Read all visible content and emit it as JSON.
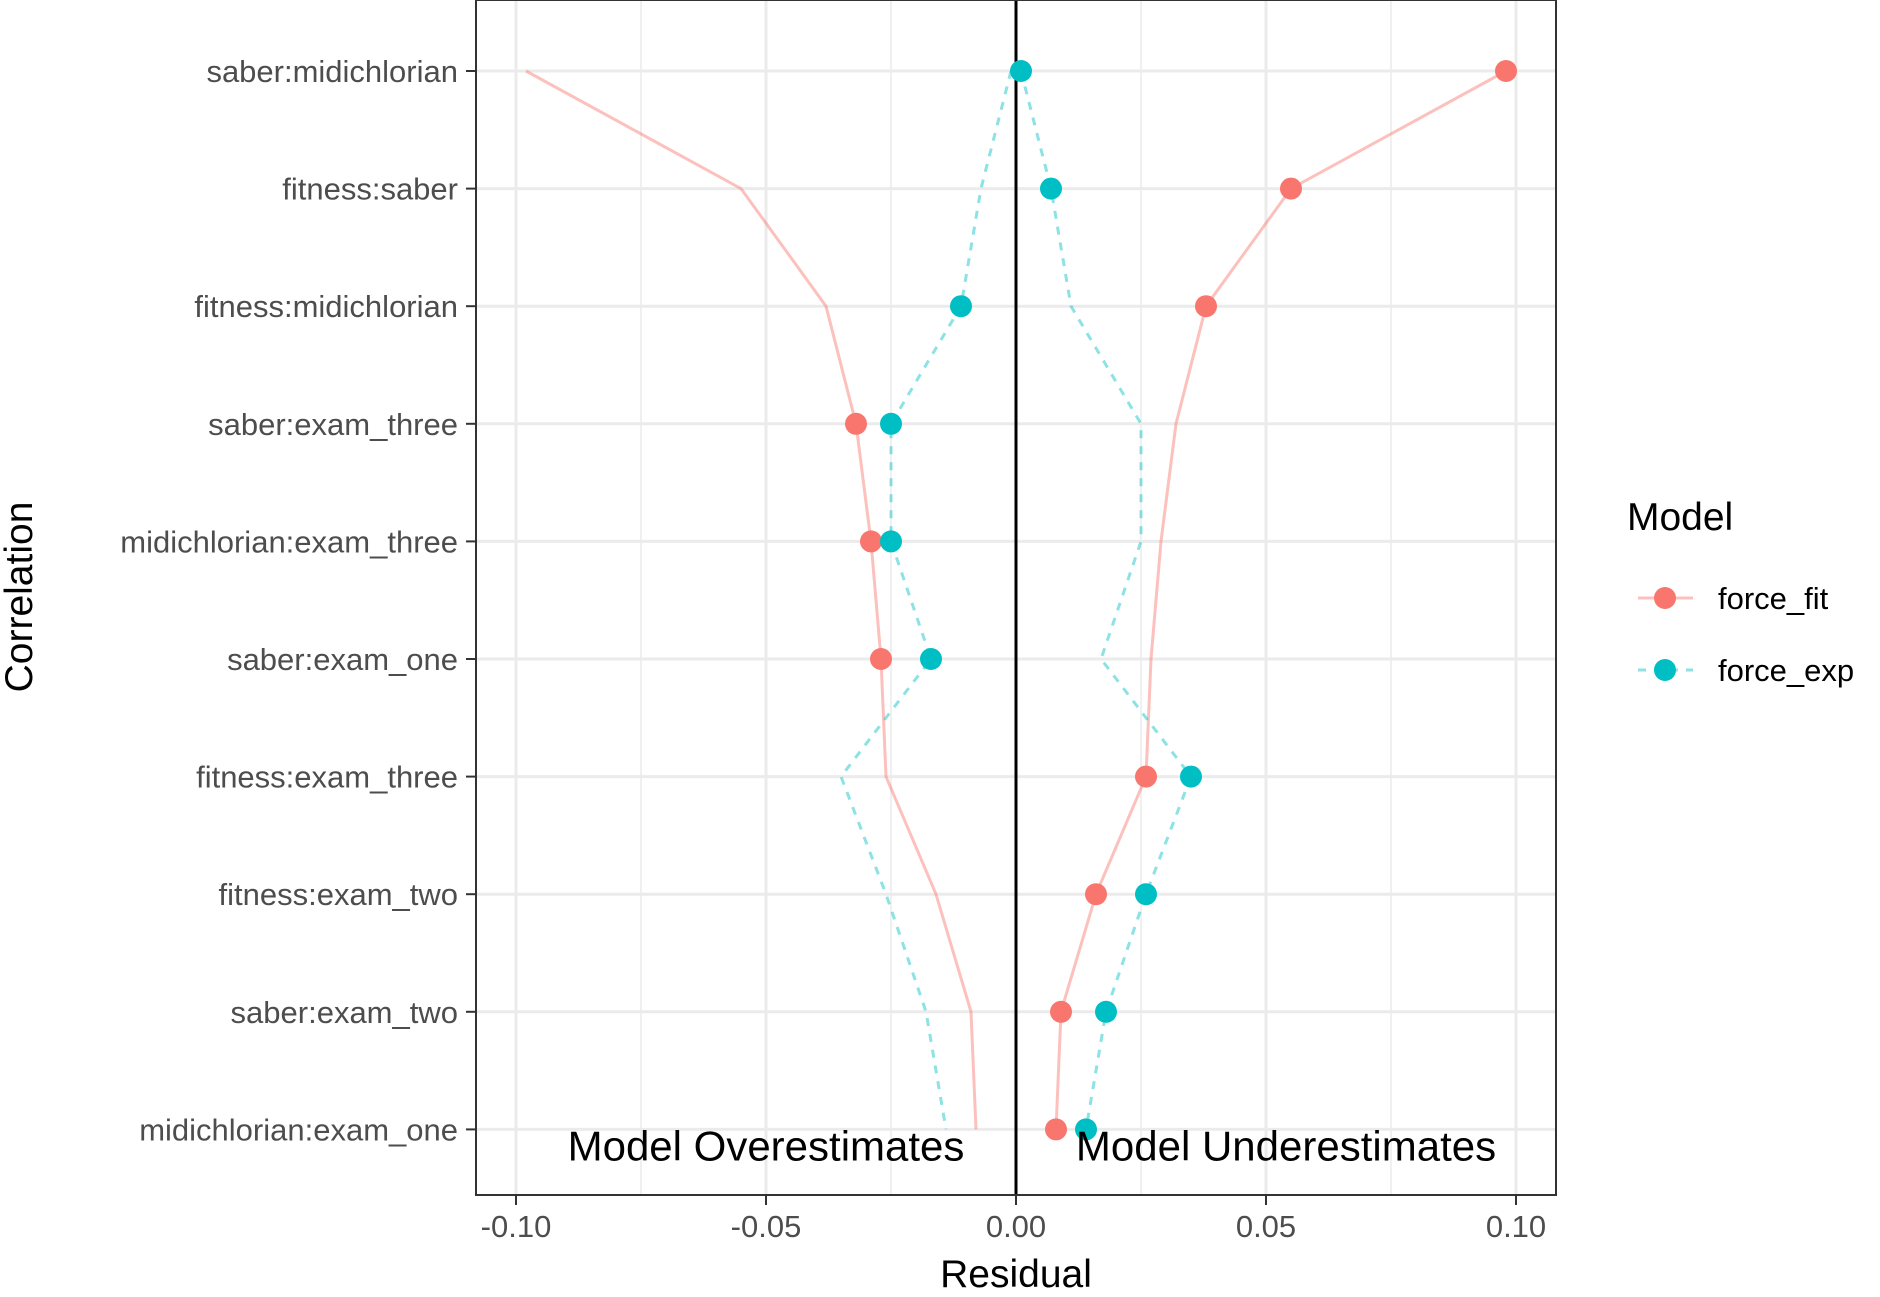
{
  "chart_data": {
    "type": "line",
    "title": "",
    "xlabel": "Residual",
    "ylabel": "Correlation",
    "xlim": [
      -0.108,
      0.108
    ],
    "x_ticks": [
      -0.1,
      -0.05,
      0.0,
      0.05,
      0.1
    ],
    "x_tick_labels": [
      "-0.10",
      "-0.05",
      "0.00",
      "0.05",
      "0.10"
    ],
    "grid": true,
    "reference_line_x": 0,
    "categories": [
      "saber:midichlorian",
      "fitness:saber",
      "fitness:midichlorian",
      "saber:exam_three",
      "midichlorian:exam_three",
      "saber:exam_one",
      "fitness:exam_three",
      "fitness:exam_two",
      "saber:exam_two",
      "midichlorian:exam_one"
    ],
    "series": [
      {
        "name": "force_fit",
        "color": "#F8766D",
        "line_style": "solid",
        "points": [
          0.098,
          0.055,
          0.038,
          -0.032,
          -0.029,
          -0.027,
          0.026,
          0.016,
          0.009,
          0.008
        ],
        "line_right": [
          0.098,
          0.055,
          0.038,
          0.032,
          0.029,
          0.027,
          0.026,
          0.016,
          0.009,
          0.008
        ],
        "line_left": [
          -0.098,
          -0.055,
          -0.038,
          -0.032,
          -0.029,
          -0.027,
          -0.026,
          -0.016,
          -0.009,
          -0.008
        ]
      },
      {
        "name": "force_exp",
        "color": "#00BFC4",
        "line_style": "dashed",
        "points": [
          0.001,
          0.007,
          -0.011,
          -0.025,
          -0.025,
          -0.017,
          0.035,
          0.026,
          0.018,
          0.014
        ],
        "line_right": [
          0.001,
          0.007,
          0.011,
          0.025,
          0.025,
          0.017,
          0.035,
          0.026,
          0.018,
          0.014
        ],
        "line_left": [
          -0.001,
          -0.007,
          -0.011,
          -0.025,
          -0.025,
          -0.017,
          -0.035,
          -0.026,
          -0.018,
          -0.014
        ]
      }
    ],
    "annotations": [
      {
        "text": "Model Overestimates",
        "x": -0.05,
        "category_index": 9
      },
      {
        "text": "Model Underestimates",
        "x": 0.054,
        "category_index": 9
      }
    ],
    "legend": {
      "title": "Model",
      "position": "right"
    }
  }
}
